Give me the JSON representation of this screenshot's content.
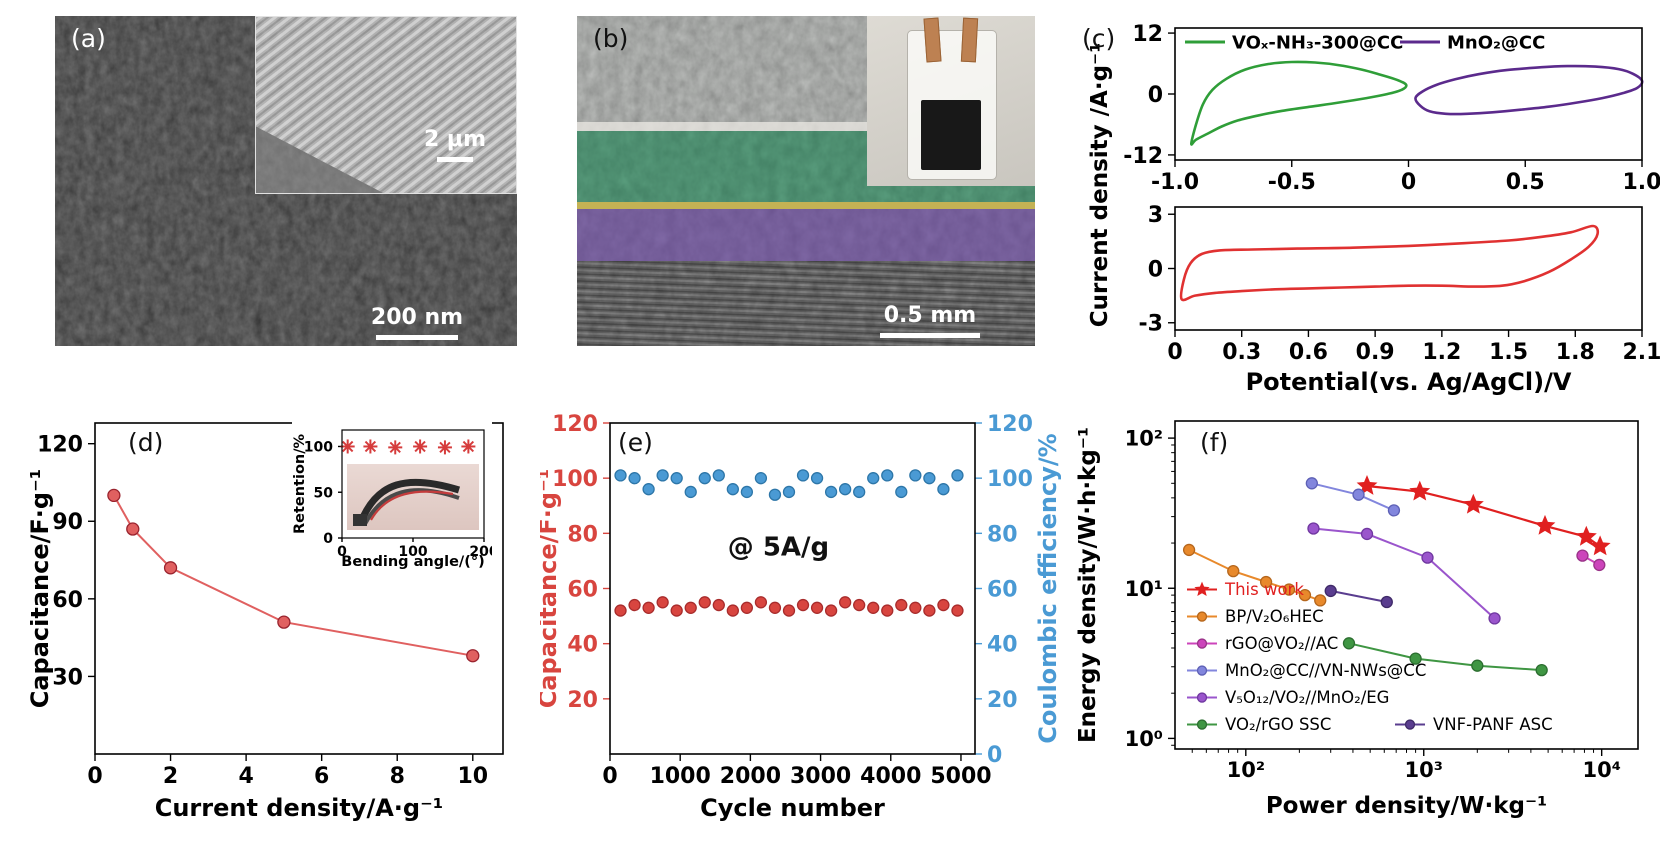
{
  "panels": {
    "a": {
      "label": "(a)",
      "inset_scalebar": "2 μm",
      "scalebar": "200 nm"
    },
    "b": {
      "label": "(b)",
      "scalebar": "0.5 mm"
    },
    "c": {
      "label": "(c)",
      "ylabel": "Current density /A·g⁻¹"
    },
    "d": {
      "label": "(d)"
    },
    "e": {
      "label": "(e)"
    },
    "f": {
      "label": "(f)"
    }
  },
  "chart_data": [
    {
      "id": "c_top",
      "type": "line",
      "xlim": [
        -1.0,
        1.0
      ],
      "ylim": [
        -13,
        13
      ],
      "xticks": {
        "values": [
          -1.0,
          -0.5,
          0,
          0.5,
          1.0
        ],
        "labels": [
          "-1.0",
          "-0.5",
          "0",
          "0.5",
          "1.0"
        ]
      },
      "yticks": {
        "values": [
          -12,
          0,
          12
        ],
        "labels": [
          "-12",
          "0",
          "12"
        ]
      },
      "legend": true,
      "series": [
        {
          "name": "VOₓ-NH₃-300@CC",
          "color": "#2f9e38",
          "type": "loop",
          "lw": 2.6,
          "points": [
            [
              -0.93,
              -9.8
            ],
            [
              -0.91,
              -6.0
            ],
            [
              -0.88,
              -2.0
            ],
            [
              -0.84,
              0.8
            ],
            [
              -0.78,
              3.0
            ],
            [
              -0.7,
              4.8
            ],
            [
              -0.6,
              5.9
            ],
            [
              -0.5,
              6.3
            ],
            [
              -0.4,
              6.2
            ],
            [
              -0.3,
              5.7
            ],
            [
              -0.2,
              4.8
            ],
            [
              -0.12,
              3.8
            ],
            [
              -0.05,
              2.8
            ],
            [
              -0.01,
              1.8
            ],
            [
              -0.03,
              0.8
            ],
            [
              -0.09,
              0.0
            ],
            [
              -0.18,
              -0.8
            ],
            [
              -0.3,
              -1.7
            ],
            [
              -0.42,
              -2.5
            ],
            [
              -0.54,
              -3.3
            ],
            [
              -0.64,
              -4.2
            ],
            [
              -0.73,
              -5.2
            ],
            [
              -0.8,
              -6.4
            ],
            [
              -0.86,
              -7.8
            ],
            [
              -0.91,
              -9.0
            ]
          ]
        },
        {
          "name": "MnO₂@CC",
          "color": "#5b2a8c",
          "type": "loop",
          "lw": 2.6,
          "points": [
            [
              0.03,
              -0.8
            ],
            [
              0.06,
              0.5
            ],
            [
              0.12,
              1.8
            ],
            [
              0.2,
              2.9
            ],
            [
              0.3,
              3.9
            ],
            [
              0.42,
              4.7
            ],
            [
              0.55,
              5.2
            ],
            [
              0.68,
              5.5
            ],
            [
              0.8,
              5.4
            ],
            [
              0.9,
              4.9
            ],
            [
              0.96,
              4.0
            ],
            [
              1.0,
              2.6
            ],
            [
              0.98,
              1.2
            ],
            [
              0.92,
              0.2
            ],
            [
              0.83,
              -0.8
            ],
            [
              0.72,
              -1.7
            ],
            [
              0.6,
              -2.5
            ],
            [
              0.48,
              -3.1
            ],
            [
              0.36,
              -3.6
            ],
            [
              0.25,
              -3.9
            ],
            [
              0.16,
              -3.9
            ],
            [
              0.09,
              -3.4
            ],
            [
              0.05,
              -2.3
            ]
          ]
        }
      ]
    },
    {
      "id": "c_bottom",
      "type": "line",
      "xlabel": "Potential(vs. Ag/AgCl)/V",
      "xlim": [
        0,
        2.1
      ],
      "ylim": [
        -3.4,
        3.4
      ],
      "xticks": {
        "values": [
          0,
          0.3,
          0.6,
          0.9,
          1.2,
          1.5,
          1.8,
          2.1
        ],
        "labels": [
          "0",
          "0.3",
          "0.6",
          "0.9",
          "1.2",
          "1.5",
          "1.8",
          "2.1"
        ]
      },
      "yticks": {
        "values": [
          -3,
          0,
          3
        ],
        "labels": [
          "-3",
          "0",
          "3"
        ]
      },
      "series": [
        {
          "color": "#e03131",
          "type": "loop",
          "lw": 2.6,
          "points": [
            [
              0.03,
              -1.7
            ],
            [
              0.04,
              -0.6
            ],
            [
              0.07,
              0.3
            ],
            [
              0.12,
              0.8
            ],
            [
              0.2,
              1.0
            ],
            [
              0.35,
              1.05
            ],
            [
              0.55,
              1.1
            ],
            [
              0.8,
              1.15
            ],
            [
              1.05,
              1.25
            ],
            [
              1.3,
              1.4
            ],
            [
              1.5,
              1.55
            ],
            [
              1.65,
              1.75
            ],
            [
              1.78,
              2.0
            ],
            [
              1.88,
              2.35
            ],
            [
              1.9,
              1.9
            ],
            [
              1.86,
              1.2
            ],
            [
              1.78,
              0.5
            ],
            [
              1.68,
              -0.2
            ],
            [
              1.57,
              -0.7
            ],
            [
              1.47,
              -0.95
            ],
            [
              1.35,
              -1.0
            ],
            [
              1.2,
              -0.95
            ],
            [
              1.05,
              -0.95
            ],
            [
              0.9,
              -1.0
            ],
            [
              0.75,
              -1.05
            ],
            [
              0.6,
              -1.1
            ],
            [
              0.45,
              -1.15
            ],
            [
              0.3,
              -1.25
            ],
            [
              0.18,
              -1.35
            ],
            [
              0.09,
              -1.5
            ]
          ]
        }
      ]
    },
    {
      "id": "d",
      "type": "scatter",
      "xlabel": "Current density/A·g⁻¹",
      "ylabel": "Capacitance/F·g⁻¹",
      "xlim": [
        0,
        10.8
      ],
      "ylim": [
        0,
        128
      ],
      "xticks": {
        "values": [
          0,
          2,
          4,
          6,
          8,
          10
        ]
      },
      "yticks": {
        "values": [
          30,
          60,
          90,
          120
        ]
      },
      "series": [
        {
          "color": "#e06060",
          "edge": "#99232e",
          "type": "linepoints",
          "marker": "circle",
          "ms": 6,
          "lw": 2,
          "points": [
            [
              0.5,
              100
            ],
            [
              1,
              87
            ],
            [
              2,
              72
            ],
            [
              5,
              51
            ],
            [
              10,
              38
            ]
          ]
        }
      ]
    },
    {
      "id": "d_inset",
      "type": "scatter",
      "xlabel": "Bending angle/(°)",
      "ylabel": "Retention/%",
      "xlim": [
        0,
        200
      ],
      "ylim": [
        0,
        118
      ],
      "xticks": {
        "values": [
          0,
          100,
          200
        ]
      },
      "yticks": {
        "values": [
          0,
          50,
          100
        ]
      },
      "series": [
        {
          "color": "#d63c3c",
          "type": "points",
          "marker": "asterisk",
          "ms": 7,
          "points": [
            [
              8,
              100
            ],
            [
              40,
              100
            ],
            [
              75,
              99
            ],
            [
              110,
              100
            ],
            [
              145,
              99
            ],
            [
              178,
              100
            ]
          ]
        }
      ]
    },
    {
      "id": "e",
      "type": "scatter",
      "xlabel": "Cycle number",
      "ylabel": "Capacitance/F·g⁻¹",
      "ylabel_color": "#d8453f",
      "y2label": "Coulombic efficiency/%",
      "y2label_color": "#4a9ad4",
      "xlim": [
        0,
        5200
      ],
      "ylim": [
        0,
        120
      ],
      "y2lim": [
        0,
        120
      ],
      "xticks": {
        "values": [
          0,
          1000,
          2000,
          3000,
          4000,
          5000
        ]
      },
      "yticks": {
        "values": [
          20,
          40,
          60,
          80,
          100,
          120
        ],
        "color": "#d8453f"
      },
      "y2ticks": {
        "values": [
          0,
          20,
          40,
          60,
          80,
          100,
          120
        ],
        "color": "#4a9ad4"
      },
      "annotations": [
        {
          "x": 2400,
          "y": 72,
          "text": "@ 5A/g",
          "size": 26,
          "weight": 700,
          "color": "#111"
        }
      ],
      "series": [
        {
          "axis": "left",
          "color": "#d8453f",
          "edge": "#a82c2c",
          "type": "points",
          "marker": "circle",
          "ms": 5.5,
          "points": [
            [
              150,
              52
            ],
            [
              350,
              54
            ],
            [
              550,
              53
            ],
            [
              750,
              55
            ],
            [
              950,
              52
            ],
            [
              1150,
              53
            ],
            [
              1350,
              55
            ],
            [
              1550,
              54
            ],
            [
              1750,
              52
            ],
            [
              1950,
              53
            ],
            [
              2150,
              55
            ],
            [
              2350,
              53
            ],
            [
              2550,
              52
            ],
            [
              2750,
              54
            ],
            [
              2950,
              53
            ],
            [
              3150,
              52
            ],
            [
              3350,
              55
            ],
            [
              3550,
              54
            ],
            [
              3750,
              53
            ],
            [
              3950,
              52
            ],
            [
              4150,
              54
            ],
            [
              4350,
              53
            ],
            [
              4550,
              52
            ],
            [
              4750,
              54
            ],
            [
              4950,
              52
            ]
          ]
        },
        {
          "axis": "right",
          "color": "#4a9ad4",
          "edge": "#2d76a8",
          "type": "points",
          "marker": "circle",
          "ms": 5.5,
          "points": [
            [
              150,
              101
            ],
            [
              350,
              100
            ],
            [
              550,
              96
            ],
            [
              750,
              101
            ],
            [
              950,
              100
            ],
            [
              1150,
              95
            ],
            [
              1350,
              100
            ],
            [
              1550,
              101
            ],
            [
              1750,
              96
            ],
            [
              1950,
              95
            ],
            [
              2150,
              100
            ],
            [
              2350,
              94
            ],
            [
              2550,
              95
            ],
            [
              2750,
              101
            ],
            [
              2950,
              100
            ],
            [
              3150,
              95
            ],
            [
              3350,
              96
            ],
            [
              3550,
              95
            ],
            [
              3750,
              100
            ],
            [
              3950,
              101
            ],
            [
              4150,
              95
            ],
            [
              4350,
              101
            ],
            [
              4550,
              100
            ],
            [
              4750,
              96
            ],
            [
              4950,
              101
            ]
          ]
        }
      ]
    },
    {
      "id": "f",
      "type": "scatter",
      "xscale": "log",
      "yscale": "log",
      "xlabel": "Power density/W·kg⁻¹",
      "ylabel": "Energy density/W·h·kg⁻¹",
      "xlim": [
        40,
        16000
      ],
      "ylim": [
        0.85,
        130
      ],
      "xticks": {
        "values": [
          100,
          1000,
          10000
        ],
        "labels": [
          "10²",
          "10³",
          "10⁴"
        ]
      },
      "yticks": {
        "values": [
          1,
          10,
          100
        ],
        "labels": [
          "10⁰",
          "10¹",
          "10²"
        ]
      },
      "legend": true,
      "series": [
        {
          "name": "This work",
          "label_color": "#e02020",
          "color": "#e02020",
          "type": "linepoints",
          "marker": "star",
          "ms": 11,
          "lw": 2.2,
          "points": [
            [
              480,
              48
            ],
            [
              950,
              44
            ],
            [
              1900,
              36
            ],
            [
              4800,
              26
            ],
            [
              8200,
              22
            ],
            [
              9800,
              19
            ]
          ]
        },
        {
          "name": "BP/V₂O₆HEC",
          "color": "#e8892b",
          "edge": "#b5661c",
          "type": "linepoints",
          "marker": "circle",
          "ms": 5.5,
          "lw": 2,
          "points": [
            [
              48,
              18
            ],
            [
              85,
              13
            ],
            [
              130,
              11
            ],
            [
              175,
              9.8
            ],
            [
              215,
              9.0
            ],
            [
              262,
              8.3
            ]
          ]
        },
        {
          "name": "rGO@VO₂//AC",
          "color": "#cc44bb",
          "edge": "#993388",
          "type": "linepoints",
          "marker": "circle",
          "ms": 5.5,
          "lw": 2,
          "points": [
            [
              7800,
              16.5
            ],
            [
              9700,
              14.3
            ]
          ]
        },
        {
          "name": "MnO₂@CC//VN-NWs@CC",
          "color": "#8286dd",
          "edge": "#5d60b5",
          "type": "linepoints",
          "marker": "circle",
          "ms": 5.5,
          "lw": 2,
          "points": [
            [
              235,
              50
            ],
            [
              430,
              42
            ],
            [
              680,
              33
            ]
          ]
        },
        {
          "name": "V₅O₁₂/VO₂//MnO₂/EG",
          "color": "#9a55cc",
          "edge": "#7038a0",
          "type": "linepoints",
          "marker": "circle",
          "ms": 5.5,
          "lw": 2,
          "points": [
            [
              240,
              25
            ],
            [
              480,
              23
            ],
            [
              1050,
              16
            ],
            [
              2500,
              6.3
            ]
          ]
        },
        {
          "name": "VO₂/rGO SSC",
          "color": "#3f9643",
          "edge": "#2c6e30",
          "type": "linepoints",
          "marker": "circle",
          "ms": 5.5,
          "lw": 2,
          "points": [
            [
              380,
              4.3
            ],
            [
              900,
              3.4
            ],
            [
              2000,
              3.05
            ],
            [
              4600,
              2.85
            ]
          ]
        },
        {
          "name": "VNF-PANF ASC",
          "color": "#5a3d8f",
          "edge": "#3f2a68",
          "type": "linepoints",
          "marker": "circle",
          "ms": 5.5,
          "lw": 2,
          "points": [
            [
              300,
              9.6
            ],
            [
              620,
              8.1
            ]
          ]
        }
      ]
    }
  ]
}
